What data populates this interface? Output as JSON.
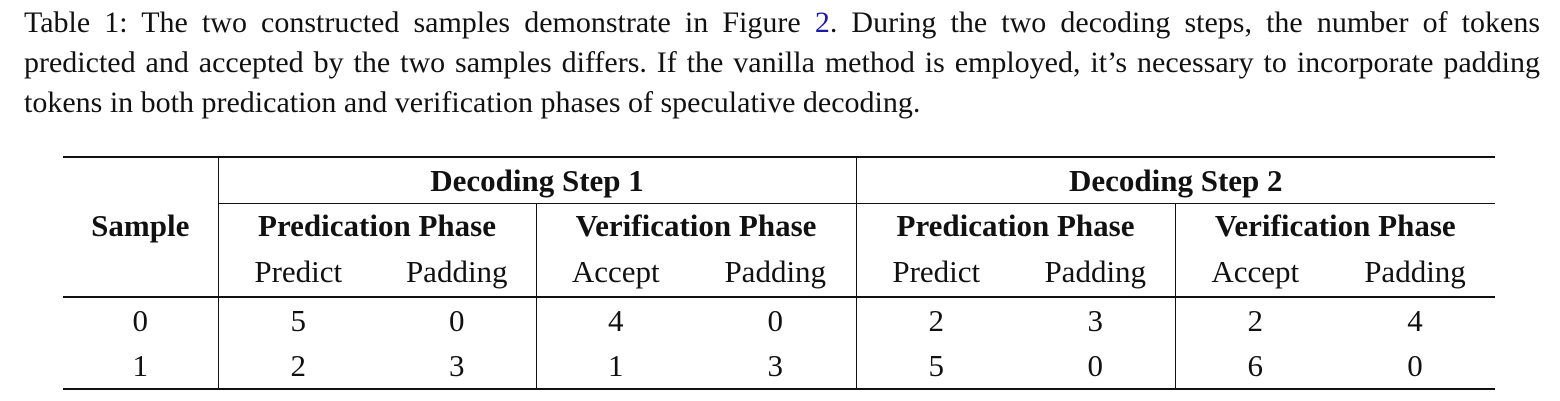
{
  "caption": {
    "label": "Table 1:",
    "text_before_ref": " The two constructed samples demonstrate in Figure ",
    "ref": "2",
    "text_after_ref": ". During the two decoding steps, the number of tokens predicted and accepted by the two samples differs. If the vanilla method is employed, it’s necessary to incorporate padding tokens in both predication and verification phases of speculative decoding."
  },
  "table": {
    "sample_header": "Sample",
    "steps": [
      {
        "title": "Decoding Step 1",
        "phases": [
          {
            "title": "Predication Phase",
            "cols": [
              "Predict",
              "Padding"
            ]
          },
          {
            "title": "Verification Phase",
            "cols": [
              "Accept",
              "Padding"
            ]
          }
        ]
      },
      {
        "title": "Decoding Step 2",
        "phases": [
          {
            "title": "Predication Phase",
            "cols": [
              "Predict",
              "Padding"
            ]
          },
          {
            "title": "Verification Phase",
            "cols": [
              "Accept",
              "Padding"
            ]
          }
        ]
      }
    ],
    "rows": [
      {
        "sample": "0",
        "values": [
          "5",
          "0",
          "4",
          "0",
          "2",
          "3",
          "2",
          "4"
        ]
      },
      {
        "sample": "1",
        "values": [
          "2",
          "3",
          "1",
          "3",
          "5",
          "0",
          "6",
          "0"
        ]
      }
    ]
  }
}
